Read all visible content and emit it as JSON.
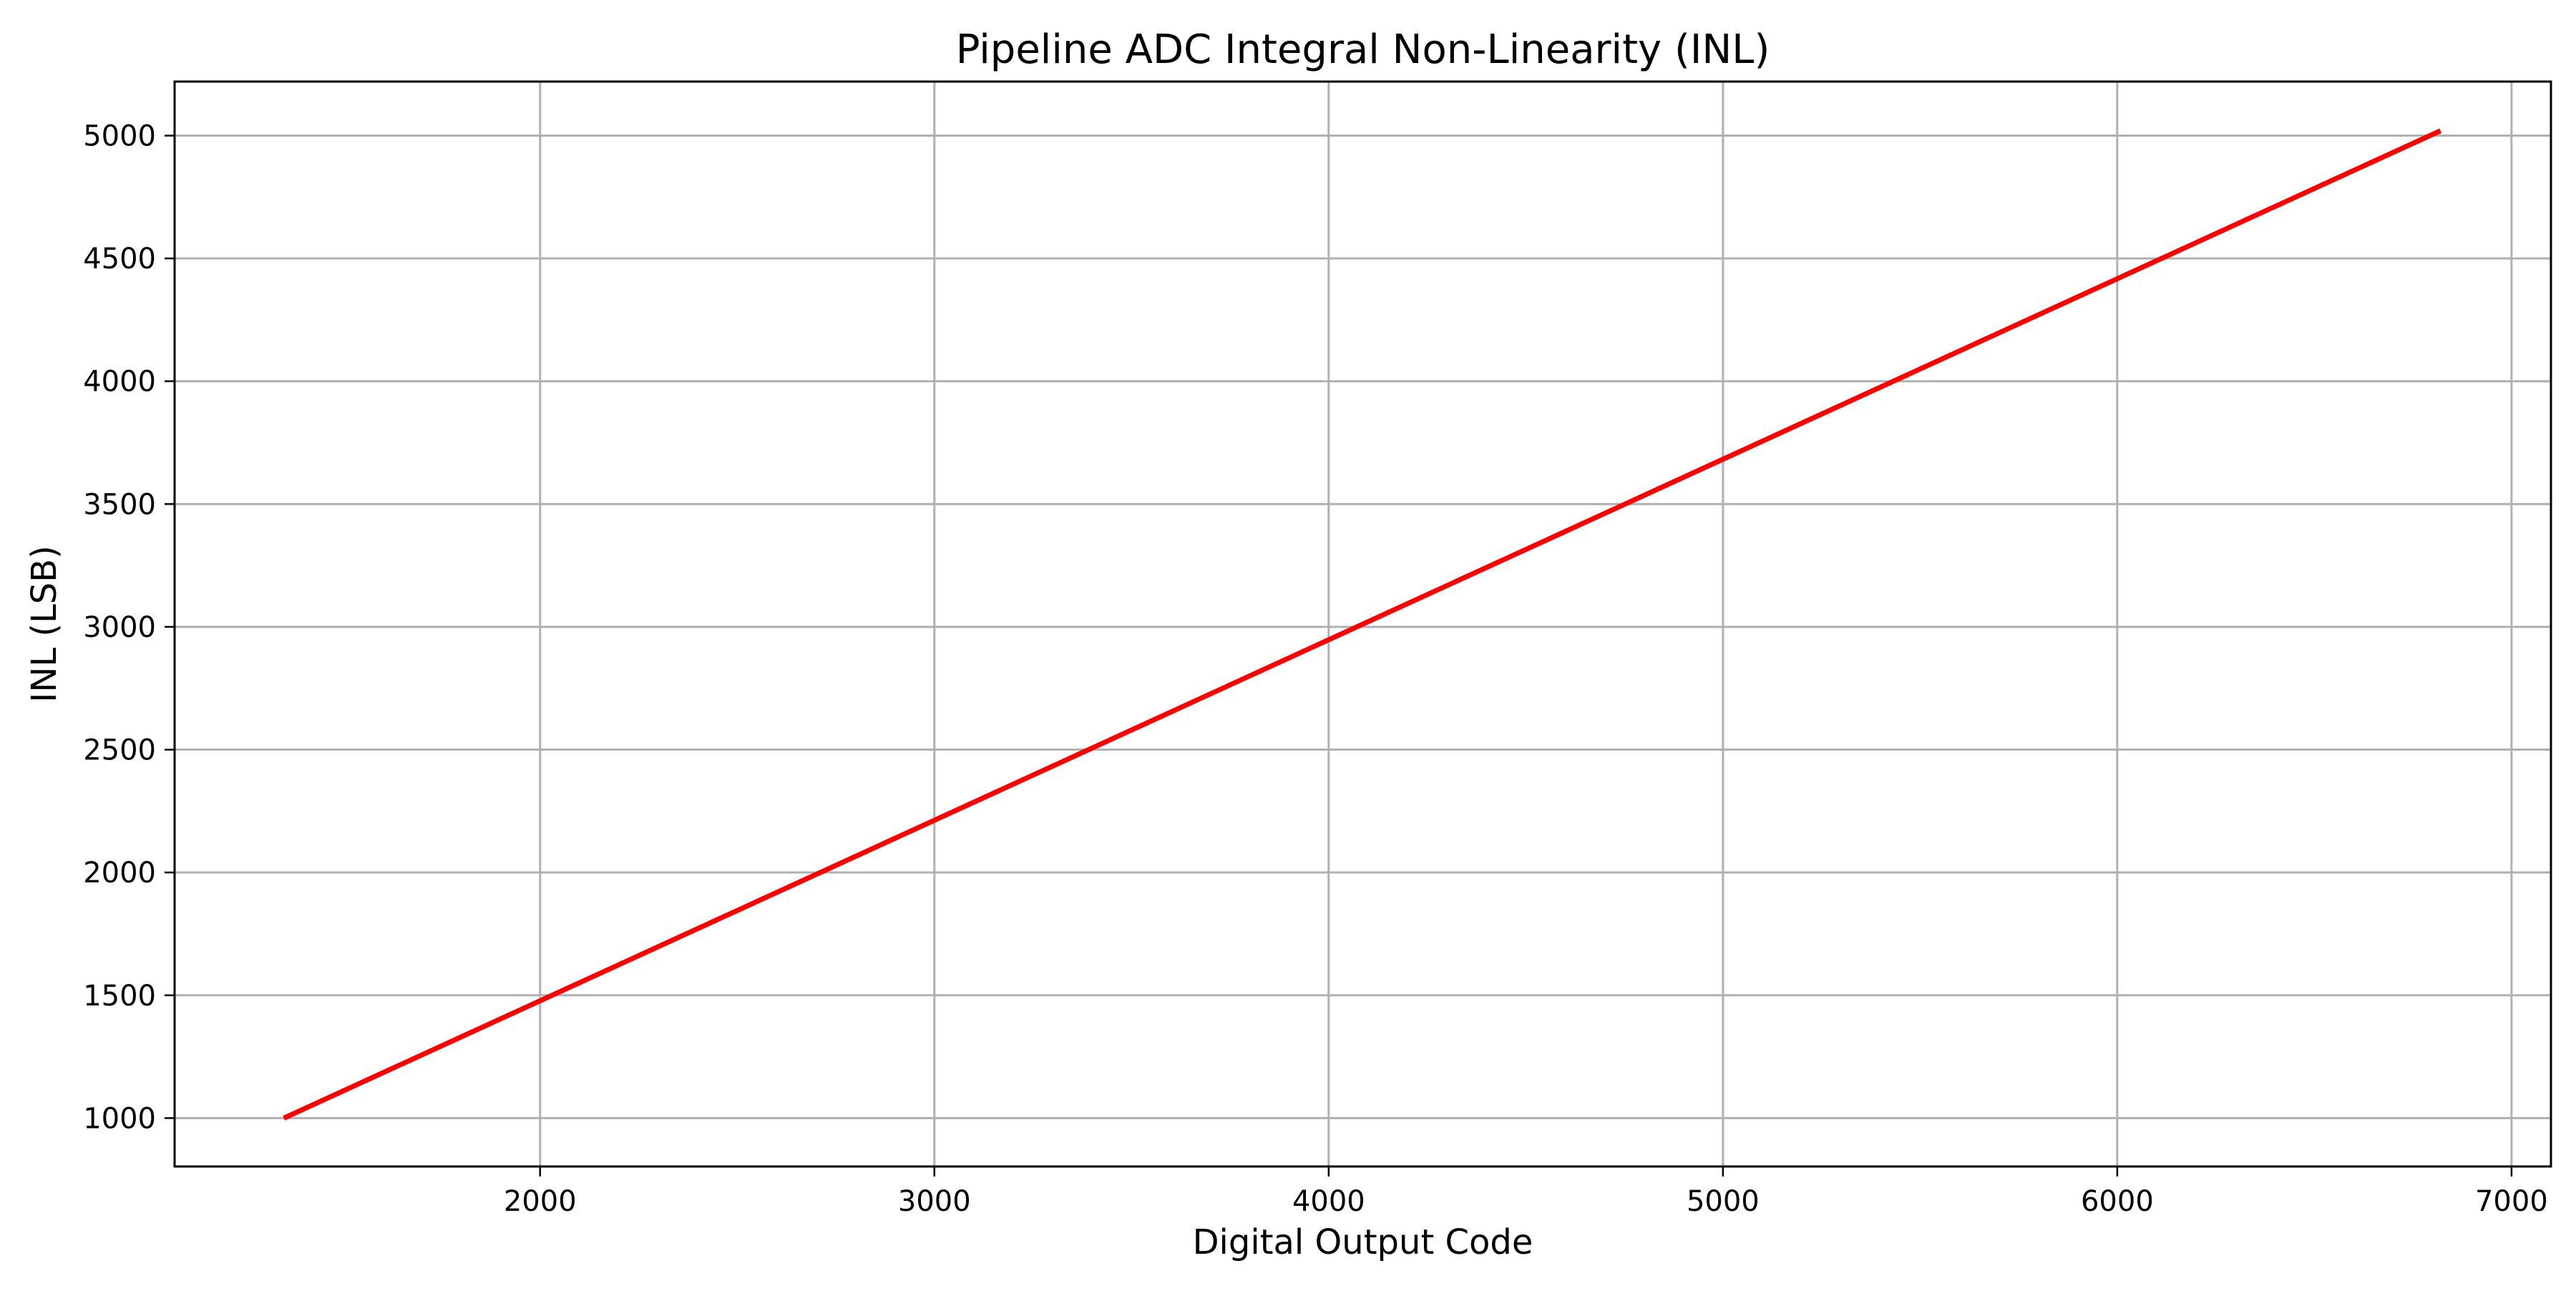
{
  "chart_data": {
    "type": "line",
    "title": "Pipeline ADC Integral Non-Linearity (INL)",
    "xlabel": "Digital Output Code",
    "ylabel": "INL (LSB)",
    "xlim": [
      1073,
      7100
    ],
    "ylim": [
      803,
      5220
    ],
    "x_ticks": [
      2000,
      3000,
      4000,
      5000,
      6000,
      7000
    ],
    "y_ticks": [
      1000,
      1500,
      2000,
      2500,
      3000,
      3500,
      4000,
      4500,
      5000
    ],
    "grid": true,
    "legend": "none",
    "series": [
      {
        "color": "#ff0000",
        "x": [
          1350,
          6820
        ],
        "y": [
          1000,
          5020
        ]
      }
    ]
  }
}
